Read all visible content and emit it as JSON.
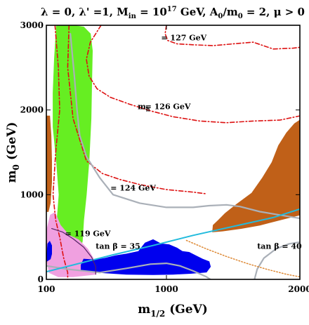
{
  "chart_data": {
    "type": "area",
    "title": "λ = 0, λ' =1, M_in = 10^17 GeV, A_0/m_0 = 2, μ > 0",
    "title_parts": {
      "p1": "λ = 0, λ' =1, M",
      "p1_sub": "in",
      "p2": " = 10",
      "p2_sup": "17",
      "p3": " GeV, A",
      "p3_sub": "0",
      "p4": "/m",
      "p4_sub": "0",
      "p5": " = 2, μ > 0"
    },
    "xlabel": "m_1/2 (GeV)",
    "xlabel_parts": {
      "base": "m",
      "sub": "1/2",
      "rest": " (GeV)"
    },
    "ylabel": "m_0 (GeV)",
    "ylabel_parts": {
      "base": "m",
      "sub": "0",
      "rest": " (GeV)"
    },
    "xlim": [
      100,
      2000
    ],
    "ylim": [
      0,
      3000
    ],
    "x_ticks": [
      {
        "value": 100,
        "label": "100"
      },
      {
        "value": 1000,
        "label": "1000"
      },
      {
        "value": 2000,
        "label": "2000"
      }
    ],
    "y_ticks": [
      {
        "value": 0,
        "label": "0"
      },
      {
        "value": 1000,
        "label": "1000"
      },
      {
        "value": 2000,
        "label": "2000"
      },
      {
        "value": 3000,
        "label": "3000"
      }
    ],
    "annotations": [
      {
        "text": "= 127 GeV",
        "x": 960,
        "y": 2820
      },
      {
        "text": "= 126 GeV",
        "x": 840,
        "y": 2010
      },
      {
        "text": "= 124 GeV",
        "x": 580,
        "y": 1050
      },
      {
        "text": "= 119 GeV",
        "x": 240,
        "y": 510
      },
      {
        "text": "tan β = 35",
        "x": 470,
        "y": 360
      },
      {
        "text": "tan β = 40",
        "x": 1680,
        "y": 360
      }
    ],
    "mh_label": {
      "base": "m",
      "sub": "h",
      "x": 785,
      "y": 2010
    },
    "regions": [
      {
        "name": "green",
        "color": "#66ee22",
        "points": [
          [
            175,
            3000
          ],
          [
            290,
            3000
          ],
          [
            380,
            2980
          ],
          [
            430,
            2900
          ],
          [
            445,
            2700
          ],
          [
            440,
            2300
          ],
          [
            435,
            1900
          ],
          [
            420,
            1400
          ],
          [
            400,
            1000
          ],
          [
            380,
            700
          ],
          [
            370,
            450
          ],
          [
            350,
            330
          ],
          [
            310,
            280
          ],
          [
            270,
            250
          ],
          [
            210,
            220
          ],
          [
            175,
            260
          ],
          [
            165,
            450
          ],
          [
            180,
            700
          ],
          [
            195,
            1000
          ],
          [
            175,
            1400
          ],
          [
            150,
            1800
          ],
          [
            150,
            2200
          ],
          [
            160,
            2600
          ],
          [
            170,
            2850
          ]
        ]
      },
      {
        "name": "brown-left",
        "color": "#c06018",
        "points": [
          [
            100,
            1930
          ],
          [
            125,
            1930
          ],
          [
            135,
            1700
          ],
          [
            140,
            1400
          ],
          [
            140,
            1150
          ],
          [
            130,
            900
          ],
          [
            115,
            800
          ],
          [
            100,
            800
          ]
        ]
      },
      {
        "name": "brown-right",
        "color": "#c06018",
        "points": [
          [
            2000,
            1880
          ],
          [
            1960,
            1840
          ],
          [
            1900,
            1730
          ],
          [
            1840,
            1580
          ],
          [
            1790,
            1380
          ],
          [
            1720,
            1200
          ],
          [
            1640,
            1020
          ],
          [
            1520,
            880
          ],
          [
            1440,
            780
          ],
          [
            1390,
            700
          ],
          [
            1350,
            640
          ],
          [
            1345,
            560
          ],
          [
            1420,
            570
          ],
          [
            1560,
            600
          ],
          [
            1700,
            640
          ],
          [
            1850,
            700
          ],
          [
            2000,
            760
          ]
        ]
      },
      {
        "name": "pink",
        "color": "#f0a0e0",
        "points": [
          [
            100,
            260
          ],
          [
            105,
            600
          ],
          [
            130,
            760
          ],
          [
            165,
            790
          ],
          [
            205,
            640
          ],
          [
            270,
            520
          ],
          [
            340,
            470
          ],
          [
            410,
            360
          ],
          [
            470,
            200
          ],
          [
            470,
            60
          ],
          [
            300,
            30
          ],
          [
            190,
            30
          ],
          [
            120,
            80
          ]
        ]
      },
      {
        "name": "blue-strip",
        "color": "#0000ee",
        "points": [
          [
            360,
            110
          ],
          [
            500,
            80
          ],
          [
            700,
            60
          ],
          [
            900,
            55
          ],
          [
            1050,
            60
          ],
          [
            1180,
            70
          ],
          [
            1300,
            85
          ],
          [
            1330,
            150
          ],
          [
            1320,
            210
          ],
          [
            1270,
            240
          ],
          [
            1220,
            280
          ],
          [
            1170,
            320
          ],
          [
            1120,
            330
          ],
          [
            1080,
            370
          ],
          [
            1020,
            410
          ],
          [
            960,
            420
          ],
          [
            900,
            470
          ],
          [
            840,
            430
          ],
          [
            790,
            330
          ],
          [
            700,
            300
          ],
          [
            620,
            280
          ],
          [
            540,
            250
          ],
          [
            470,
            230
          ],
          [
            380,
            240
          ],
          [
            360,
            170
          ]
        ]
      },
      {
        "name": "blue-left",
        "color": "#0000ee",
        "points": [
          [
            100,
            210
          ],
          [
            110,
            420
          ],
          [
            125,
            450
          ],
          [
            140,
            400
          ],
          [
            140,
            300
          ],
          [
            130,
            240
          ]
        ]
      }
    ],
    "lines": [
      {
        "name": "contour-127",
        "color": "#dd1111",
        "style": "dashdot",
        "width": 1.6,
        "points": [
          [
            1000,
            3000
          ],
          [
            990,
            2900
          ],
          [
            1010,
            2820
          ],
          [
            1080,
            2780
          ],
          [
            1200,
            2770
          ],
          [
            1350,
            2760
          ],
          [
            1500,
            2780
          ],
          [
            1650,
            2800
          ],
          [
            1800,
            2720
          ],
          [
            1950,
            2730
          ],
          [
            2000,
            2740
          ]
        ]
      },
      {
        "name": "contour-126",
        "color": "#dd1111",
        "style": "dashdot",
        "width": 1.6,
        "points": [
          [
            510,
            3000
          ],
          [
            430,
            2800
          ],
          [
            400,
            2600
          ],
          [
            420,
            2400
          ],
          [
            480,
            2250
          ],
          [
            580,
            2150
          ],
          [
            720,
            2070
          ],
          [
            880,
            1990
          ],
          [
            1050,
            1920
          ],
          [
            1250,
            1870
          ],
          [
            1450,
            1850
          ],
          [
            1650,
            1870
          ],
          [
            1850,
            1880
          ],
          [
            2000,
            1930
          ]
        ]
      },
      {
        "name": "contour-124",
        "color": "#dd1111",
        "style": "dashdot",
        "width": 1.6,
        "points": [
          [
            270,
            3000
          ],
          [
            260,
            2500
          ],
          [
            300,
            1900
          ],
          [
            400,
            1400
          ],
          [
            520,
            1250
          ],
          [
            650,
            1180
          ],
          [
            800,
            1120
          ],
          [
            1000,
            1060
          ],
          [
            1200,
            1030
          ],
          [
            1300,
            1010
          ]
        ]
      },
      {
        "name": "contour-119",
        "color": "#dd1111",
        "style": "dashdot",
        "width": 1.6,
        "points": [
          [
            165,
            3000
          ],
          [
            190,
            2500
          ],
          [
            200,
            2000
          ],
          [
            170,
            1500
          ],
          [
            150,
            1000
          ],
          [
            170,
            700
          ],
          [
            200,
            500
          ],
          [
            230,
            250
          ],
          [
            260,
            80
          ],
          [
            260,
            0
          ]
        ]
      },
      {
        "name": "gray-boundary",
        "color": "#aab0b8",
        "style": "solid",
        "width": 2.2,
        "points": [
          [
            280,
            2900
          ],
          [
            310,
            2400
          ],
          [
            330,
            2000
          ],
          [
            350,
            1700
          ],
          [
            400,
            1450
          ],
          [
            500,
            1200
          ],
          [
            600,
            1000
          ],
          [
            800,
            900
          ],
          [
            1000,
            850
          ],
          [
            1200,
            850
          ],
          [
            1320,
            870
          ],
          [
            1450,
            880
          ],
          [
            1550,
            860
          ],
          [
            1700,
            800
          ],
          [
            1850,
            760
          ],
          [
            2000,
            720
          ]
        ]
      },
      {
        "name": "gray-lower",
        "color": "#aab0b8",
        "style": "solid",
        "width": 2.2,
        "points": [
          [
            100,
            160
          ],
          [
            260,
            120
          ],
          [
            500,
            80
          ],
          [
            700,
            130
          ],
          [
            880,
            180
          ],
          [
            1000,
            190
          ],
          [
            1100,
            160
          ],
          [
            1200,
            100
          ],
          [
            1300,
            30
          ],
          [
            1330,
            0
          ]
        ]
      },
      {
        "name": "gray-hook",
        "color": "#aab0b8",
        "style": "solid",
        "width": 2.2,
        "points": [
          [
            1660,
            0
          ],
          [
            1680,
            120
          ],
          [
            1730,
            250
          ],
          [
            1820,
            360
          ],
          [
            1920,
            420
          ],
          [
            2000,
            440
          ]
        ]
      },
      {
        "name": "tan-beta-35-boundary",
        "color": "#22bbdd",
        "style": "solid",
        "width": 2.0,
        "points": [
          [
            100,
            90
          ],
          [
            300,
            170
          ],
          [
            600,
            290
          ],
          [
            900,
            400
          ],
          [
            1200,
            520
          ],
          [
            1400,
            590
          ],
          [
            1600,
            660
          ],
          [
            1800,
            730
          ],
          [
            2000,
            830
          ]
        ]
      },
      {
        "name": "dotted-orange",
        "color": "#dd8833",
        "style": "dotted",
        "width": 1.5,
        "points": [
          [
            1150,
            460
          ],
          [
            1300,
            360
          ],
          [
            1450,
            270
          ],
          [
            1600,
            190
          ],
          [
            1750,
            120
          ],
          [
            1900,
            60
          ],
          [
            2000,
            30
          ]
        ]
      },
      {
        "name": "purple-edge",
        "color": "#552266",
        "style": "solid",
        "width": 1.2,
        "points": [
          [
            140,
            600
          ],
          [
            220,
            560
          ],
          [
            300,
            480
          ],
          [
            380,
            380
          ],
          [
            440,
            260
          ],
          [
            470,
            150
          ],
          [
            470,
            60
          ]
        ]
      }
    ]
  }
}
